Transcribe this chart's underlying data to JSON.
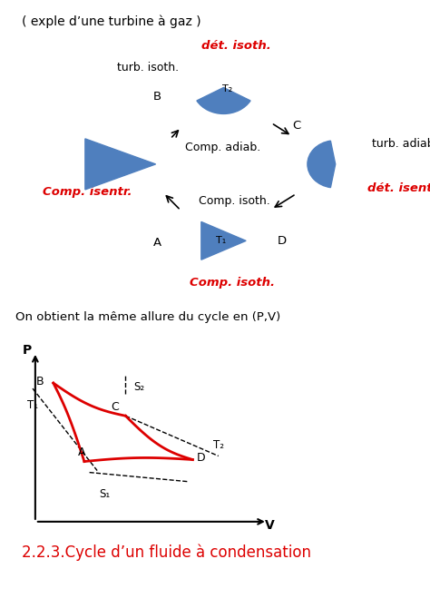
{
  "title_text": "( exple d’une turbine à gaz )",
  "background_color": "#ffffff",
  "blue_color": "#4f7fbe",
  "red_color": "#dd0000",
  "black_color": "#000000",
  "det_isoth": "dét. isoth.",
  "turb_isoth": "turb. isoth.",
  "comp_adiab": "Comp. adiab.",
  "turb_adiab": "turb. adiab.",
  "comp_isoth_mid": "Comp. isoth.",
  "comp_isentr": "Comp. isentr.",
  "det_isentr": "dét. isentr.",
  "comp_isoth_bot": "Comp. isoth.",
  "node_B": "B",
  "node_C": "C",
  "node_A": "A",
  "node_D": "D",
  "node_T1": "T₁",
  "node_T2": "T₂",
  "graph_text": "On obtient la même allure du cycle en (P,V)",
  "s1_label": "S₁",
  "s2_label": "S₂",
  "t1_label": "T₁",
  "t2_label": "T₂",
  "footer_text": "2.2.3.Cycle d’un fluide à condensation"
}
